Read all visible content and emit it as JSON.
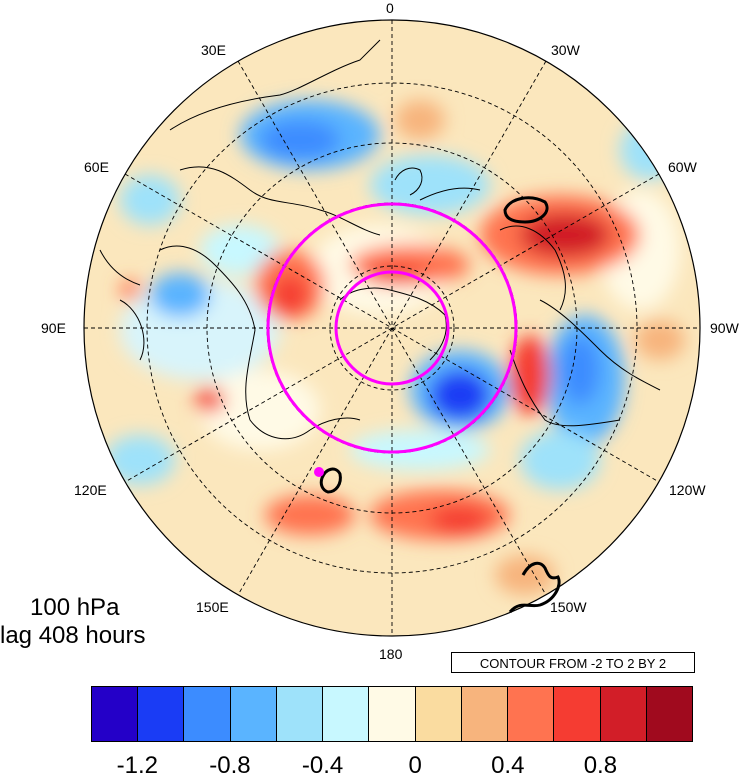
{
  "title": {
    "level": "100 hPa",
    "lag": "lag 408 hours"
  },
  "contour_note": "CONTOUR FROM -2 TO 2 BY 2",
  "longitude_labels": {
    "deg0": "0",
    "e30": "30E",
    "w30": "30W",
    "e60": "60E",
    "w60": "60W",
    "e90": "90E",
    "w90": "90W",
    "e120": "120E",
    "w120": "120W",
    "e150": "150E",
    "w150": "150W",
    "deg180": "180"
  },
  "colorbar": {
    "colors": [
      "#2400c8",
      "#1a3cf5",
      "#3c8cff",
      "#5ab4ff",
      "#9ee2fa",
      "#c8f8ff",
      "#fffae6",
      "#fadca0",
      "#f7b47d",
      "#ff7350",
      "#f53c32",
      "#d21e28",
      "#a00a1e"
    ],
    "tick_labels": [
      "-1.2",
      "-0.8",
      "-0.4",
      "0",
      "0.4",
      "0.8"
    ]
  },
  "overlay": {
    "ring_color": "#ff00ff",
    "anomaly_positive": "#e8403a",
    "anomaly_negative": "#3a6ee8"
  }
}
